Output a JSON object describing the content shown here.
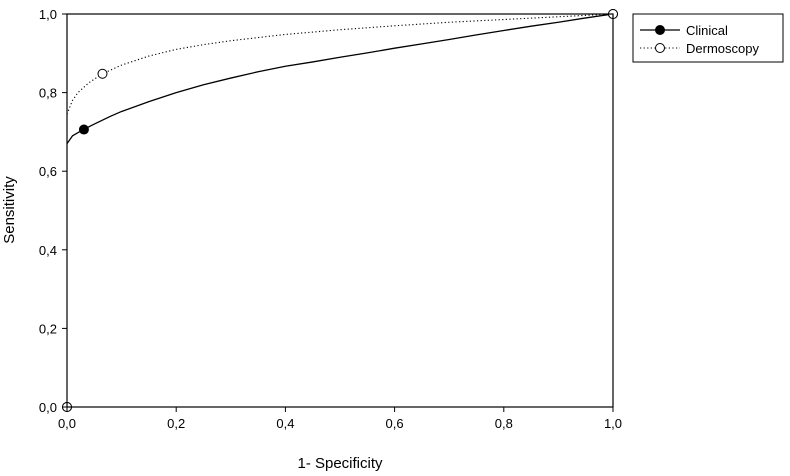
{
  "chart_data": {
    "type": "line",
    "title": "",
    "xlabel": "1- Specificity",
    "ylabel": "Sensitivity",
    "xlim": [
      0,
      1
    ],
    "ylim": [
      0,
      1
    ],
    "x_ticks": [
      "0,0",
      "0,2",
      "0,4",
      "0,6",
      "0,8",
      "1,0"
    ],
    "y_ticks": [
      "0,0",
      "0,2",
      "0,4",
      "0,6",
      "0,8",
      "1,0"
    ],
    "grid": false,
    "legend_position": "top-right-outside",
    "series": [
      {
        "name": "Clinical",
        "line_style": "solid",
        "marker": "filled-circle",
        "color": "#000000",
        "curve": {
          "x": [
            0.0,
            0.01,
            0.03,
            0.05,
            0.08,
            0.1,
            0.15,
            0.2,
            0.25,
            0.3,
            0.35,
            0.4,
            0.45,
            0.5,
            0.55,
            0.6,
            0.65,
            0.7,
            0.75,
            0.8,
            0.85,
            0.9,
            0.95,
            1.0
          ],
          "y": [
            0.67,
            0.69,
            0.706,
            0.72,
            0.74,
            0.752,
            0.777,
            0.8,
            0.82,
            0.837,
            0.853,
            0.867,
            0.878,
            0.89,
            0.901,
            0.913,
            0.924,
            0.935,
            0.947,
            0.958,
            0.969,
            0.979,
            0.99,
            1.0
          ]
        },
        "points": [
          {
            "x": 0.0,
            "y": 0.0
          },
          {
            "x": 0.031,
            "y": 0.706
          },
          {
            "x": 1.0,
            "y": 1.0
          }
        ]
      },
      {
        "name": "Dermoscopy",
        "line_style": "dotted",
        "marker": "open-circle",
        "color": "#000000",
        "curve": {
          "x": [
            0.0,
            0.01,
            0.02,
            0.04,
            0.065,
            0.1,
            0.15,
            0.2,
            0.25,
            0.3,
            0.4,
            0.5,
            0.6,
            0.7,
            0.8,
            0.9,
            1.0
          ],
          "y": [
            0.745,
            0.78,
            0.8,
            0.825,
            0.848,
            0.87,
            0.893,
            0.91,
            0.922,
            0.932,
            0.948,
            0.96,
            0.97,
            0.979,
            0.986,
            0.993,
            1.0
          ]
        },
        "points": [
          {
            "x": 0.0,
            "y": 0.0
          },
          {
            "x": 0.065,
            "y": 0.848
          },
          {
            "x": 1.0,
            "y": 1.0
          }
        ]
      }
    ]
  }
}
